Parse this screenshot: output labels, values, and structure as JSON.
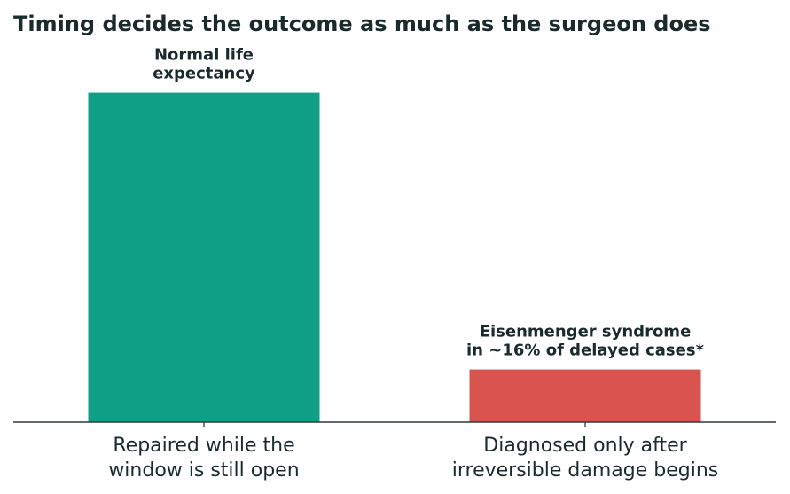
{
  "chart_data": {
    "type": "bar",
    "title": "Timing decides the outcome as much as the surgeon does",
    "xlabel": "",
    "ylabel": "",
    "categories": [
      [
        "Repaired while the",
        "window is still open"
      ],
      [
        "Diagnosed only after",
        "irreversible damage begins"
      ]
    ],
    "values": [
      100,
      16
    ],
    "ylim": [
      0,
      112
    ],
    "bar_labels": [
      [
        "Normal life",
        "expectancy"
      ],
      [
        "Eisenmenger syndrome",
        "in ~16% of delayed cases*"
      ]
    ],
    "colors": [
      "#0e9f86",
      "#d9534f"
    ],
    "axis_color": "#2f3b3b",
    "grid": false,
    "legend": "none",
    "y_axis_visible": false
  }
}
